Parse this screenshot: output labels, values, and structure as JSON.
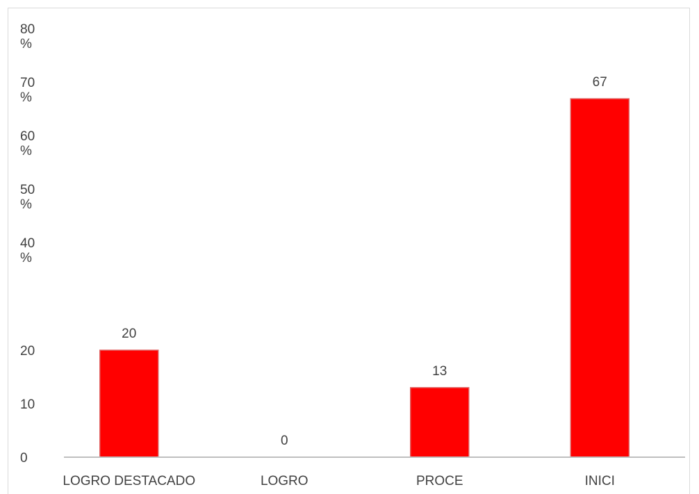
{
  "chart_data": {
    "type": "bar",
    "title": "",
    "xlabel": "",
    "ylabel": "",
    "categories": [
      "LOGRO DESTACADO",
      "LOGRO",
      "PROCE",
      "INICI"
    ],
    "values": [
      20,
      0,
      13,
      67
    ],
    "data_labels": [
      "20",
      "0",
      "13",
      "67"
    ],
    "y_ticks": [
      {
        "value": 0,
        "label": "0"
      },
      {
        "value": 10,
        "label": "10"
      },
      {
        "value": 20,
        "label": "20"
      },
      {
        "value": 40,
        "label": "40\n%"
      },
      {
        "value": 50,
        "label": "50\n%"
      },
      {
        "value": 60,
        "label": "60\n%"
      },
      {
        "value": 70,
        "label": "70\n%"
      },
      {
        "value": 80,
        "label": "80\n%"
      }
    ],
    "ylim": [
      0,
      80
    ],
    "grid": false,
    "legend": "none",
    "bar_color": "#ff0000",
    "bar_edge_color": "#e06060",
    "axis_color": "#bfbfbf",
    "text_color": "#404040"
  }
}
